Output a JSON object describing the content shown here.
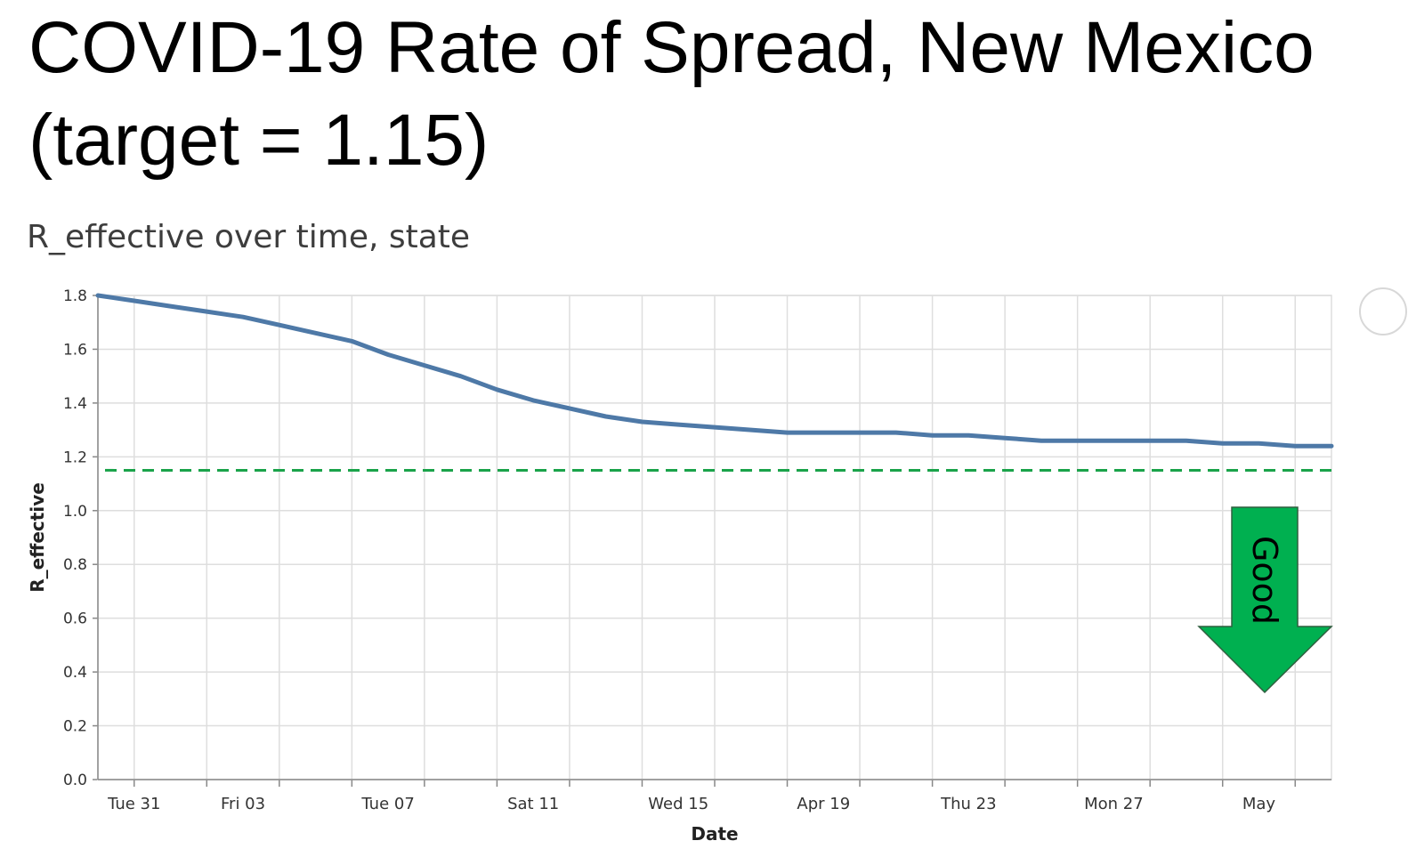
{
  "page": {
    "title_line1": "COVID-19 Rate of Spread, New Mexico",
    "title_line2": "(target = 1.15)",
    "subtitle": "R_effective over time, state"
  },
  "chart_data": {
    "type": "line",
    "xlabel": "Date",
    "ylabel": "R_effective",
    "ylim": [
      0,
      1.8
    ],
    "yticks": [
      "0.0",
      "0.2",
      "0.4",
      "0.6",
      "0.8",
      "1.0",
      "1.2",
      "1.4",
      "1.6",
      "1.8"
    ],
    "xlim": [
      "2020-03-30",
      "2020-05-03"
    ],
    "xticks": [
      {
        "label": "Tue 31",
        "date": "2020-03-31"
      },
      {
        "label": "Fri 03",
        "date": "2020-04-03"
      },
      {
        "label": "Tue 07",
        "date": "2020-04-07"
      },
      {
        "label": "Sat 11",
        "date": "2020-04-11"
      },
      {
        "label": "Wed 15",
        "date": "2020-04-15"
      },
      {
        "label": "Apr 19",
        "date": "2020-04-19"
      },
      {
        "label": "Thu 23",
        "date": "2020-04-23"
      },
      {
        "label": "Mon 27",
        "date": "2020-04-27"
      },
      {
        "label": "May",
        "date": "2020-05-01"
      }
    ],
    "grid": true,
    "series": [
      {
        "color": "#4e79a7",
        "points": [
          {
            "x": "2020-03-30",
            "y": 1.8
          },
          {
            "x": "2020-03-31",
            "y": 1.78
          },
          {
            "x": "2020-04-01",
            "y": 1.76
          },
          {
            "x": "2020-04-02",
            "y": 1.74
          },
          {
            "x": "2020-04-03",
            "y": 1.72
          },
          {
            "x": "2020-04-04",
            "y": 1.69
          },
          {
            "x": "2020-04-05",
            "y": 1.66
          },
          {
            "x": "2020-04-06",
            "y": 1.63
          },
          {
            "x": "2020-04-07",
            "y": 1.58
          },
          {
            "x": "2020-04-08",
            "y": 1.54
          },
          {
            "x": "2020-04-09",
            "y": 1.5
          },
          {
            "x": "2020-04-10",
            "y": 1.45
          },
          {
            "x": "2020-04-11",
            "y": 1.41
          },
          {
            "x": "2020-04-12",
            "y": 1.38
          },
          {
            "x": "2020-04-13",
            "y": 1.35
          },
          {
            "x": "2020-04-14",
            "y": 1.33
          },
          {
            "x": "2020-04-15",
            "y": 1.32
          },
          {
            "x": "2020-04-16",
            "y": 1.31
          },
          {
            "x": "2020-04-17",
            "y": 1.3
          },
          {
            "x": "2020-04-18",
            "y": 1.29
          },
          {
            "x": "2020-04-19",
            "y": 1.29
          },
          {
            "x": "2020-04-20",
            "y": 1.29
          },
          {
            "x": "2020-04-21",
            "y": 1.29
          },
          {
            "x": "2020-04-22",
            "y": 1.28
          },
          {
            "x": "2020-04-23",
            "y": 1.28
          },
          {
            "x": "2020-04-24",
            "y": 1.27
          },
          {
            "x": "2020-04-25",
            "y": 1.26
          },
          {
            "x": "2020-04-26",
            "y": 1.26
          },
          {
            "x": "2020-04-27",
            "y": 1.26
          },
          {
            "x": "2020-04-28",
            "y": 1.26
          },
          {
            "x": "2020-04-29",
            "y": 1.26
          },
          {
            "x": "2020-04-30",
            "y": 1.25
          },
          {
            "x": "2020-05-01",
            "y": 1.25
          },
          {
            "x": "2020-05-02",
            "y": 1.24
          },
          {
            "x": "2020-05-03",
            "y": 1.24
          }
        ]
      }
    ],
    "target": {
      "y": 1.15,
      "color": "#1aa34a",
      "style": "dashed"
    },
    "annotation": {
      "label": "Good",
      "color": "#00b050",
      "shape": "down-arrow",
      "position": "bottom-right"
    }
  }
}
